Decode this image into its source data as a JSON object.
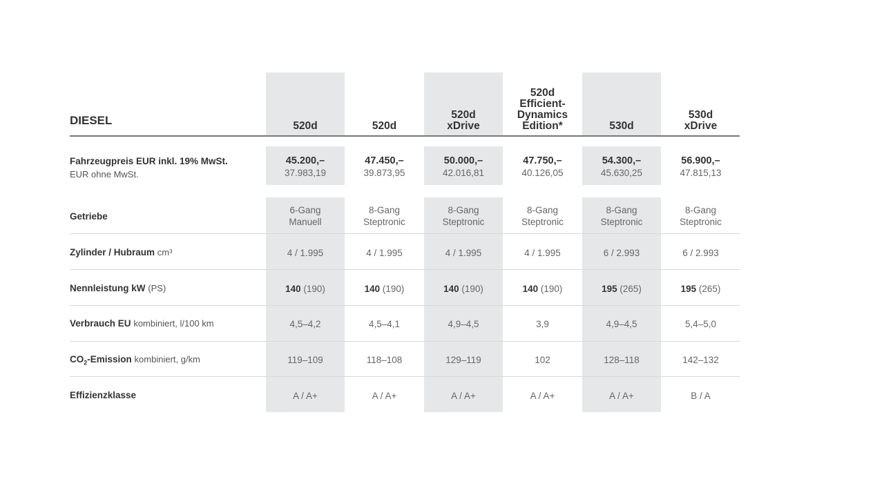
{
  "section_title": "DIESEL",
  "shade_color": "#e6e7e8",
  "columns": [
    {
      "l1": "",
      "l2": "",
      "l3": "",
      "l4": "520d"
    },
    {
      "l1": "",
      "l2": "",
      "l3": "",
      "l4": "520d"
    },
    {
      "l1": "",
      "l2": "",
      "l3": "520d",
      "l4": "xDrive"
    },
    {
      "l1": "520d",
      "l2": "Efficient-",
      "l3": "Dynamics",
      "l4": "Edition*"
    },
    {
      "l1": "",
      "l2": "",
      "l3": "",
      "l4": "530d"
    },
    {
      "l1": "",
      "l2": "",
      "l3": "530d",
      "l4": "xDrive"
    }
  ],
  "rows": {
    "price": {
      "label": "Fahrzeugpreis EUR inkl. 19% MwSt.",
      "sublabel": "EUR ohne MwSt.",
      "values": [
        {
          "gross": "45.200,–",
          "net": "37.983,19"
        },
        {
          "gross": "47.450,–",
          "net": "39.873,95"
        },
        {
          "gross": "50.000,–",
          "net": "42.016,81"
        },
        {
          "gross": "47.750,–",
          "net": "40.126,05"
        },
        {
          "gross": "54.300,–",
          "net": "45.630,25"
        },
        {
          "gross": "56.900,–",
          "net": "47.815,13"
        }
      ]
    },
    "gearbox": {
      "label": "Getriebe",
      "values": [
        {
          "a": "6-Gang",
          "b": "Manuell"
        },
        {
          "a": "8-Gang",
          "b": "Steptronic"
        },
        {
          "a": "8-Gang",
          "b": "Steptronic"
        },
        {
          "a": "8-Gang",
          "b": "Steptronic"
        },
        {
          "a": "8-Gang",
          "b": "Steptronic"
        },
        {
          "a": "8-Gang",
          "b": "Steptronic"
        }
      ]
    },
    "cylinders": {
      "label": "Zylinder / Hubraum",
      "unit": "cm³",
      "values": [
        "4 / 1.995",
        "4 / 1.995",
        "4 / 1.995",
        "4 / 1.995",
        "6 / 2.993",
        "6 / 2.993"
      ]
    },
    "power": {
      "label": "Nennleistung kW",
      "unit": "(PS)",
      "values": [
        {
          "kw": "140",
          "ps": "(190)"
        },
        {
          "kw": "140",
          "ps": "(190)"
        },
        {
          "kw": "140",
          "ps": "(190)"
        },
        {
          "kw": "140",
          "ps": "(190)"
        },
        {
          "kw": "195",
          "ps": "(265)"
        },
        {
          "kw": "195",
          "ps": "(265)"
        }
      ]
    },
    "consumption": {
      "label": "Verbrauch EU",
      "unit": "kombiniert, l/100 km",
      "values": [
        "4,5–4,2",
        "4,5–4,1",
        "4,9–4,5",
        "3,9",
        "4,9–4,5",
        "5,4–5,0"
      ]
    },
    "co2": {
      "label_a": "CO",
      "label_sub": "2",
      "label_b": "-Emission",
      "unit": "kombiniert, g/km",
      "values": [
        "119–109",
        "118–108",
        "129–119",
        "102",
        "128–118",
        "142–132"
      ]
    },
    "efficiency": {
      "label": "Effizienzklasse",
      "values": [
        "A / A+",
        "A / A+",
        "A / A+",
        "A / A+",
        "A / A+",
        "B / A"
      ]
    }
  }
}
